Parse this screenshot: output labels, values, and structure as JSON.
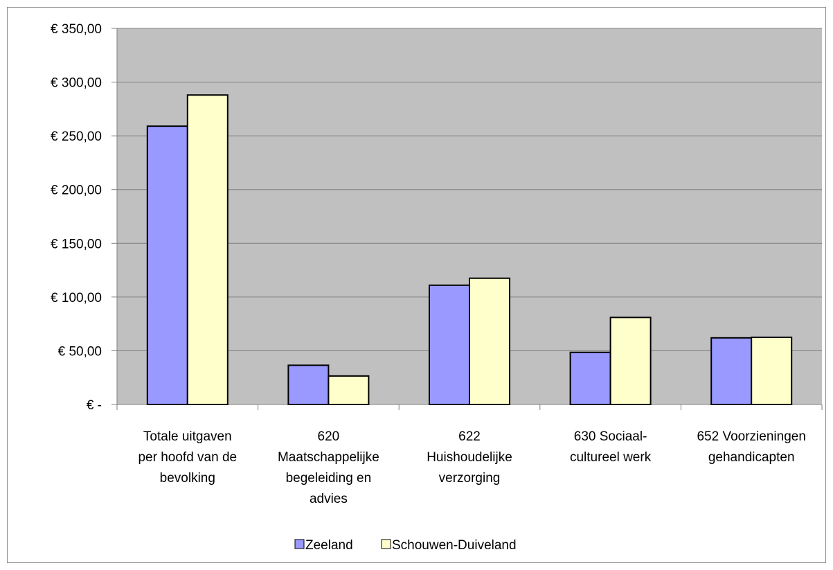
{
  "chart_data": {
    "type": "bar",
    "title": "",
    "xlabel": "",
    "ylabel": "",
    "ylim": [
      0,
      350
    ],
    "ytick_values": [
      0,
      50,
      100,
      150,
      200,
      250,
      300,
      350
    ],
    "ytick_labels": [
      "€ -",
      "€ 50,00",
      "€ 100,00",
      "€ 150,00",
      "€ 200,00",
      "€ 250,00",
      "€ 300,00",
      "€ 350,00"
    ],
    "grid": true,
    "legend_position": "bottom",
    "plot_background": "#c0c0c0",
    "categories": [
      [
        "Totale uitgaven",
        "per hoofd van de",
        "bevolking"
      ],
      [
        "620",
        "Maatschappelijke",
        "begeleiding en",
        "advies"
      ],
      [
        "622",
        "Huishoudelijke",
        "verzorging"
      ],
      [
        "630 Sociaal-",
        "cultureel werk"
      ],
      [
        "652 Voorzieningen",
        "gehandicapten"
      ]
    ],
    "series": [
      {
        "name": "Zeeland",
        "color": "#9999ff",
        "values": [
          259,
          36.5,
          111,
          48.5,
          62
        ]
      },
      {
        "name": "Schouwen-Duiveland",
        "color": "#ffffcc",
        "values": [
          288,
          26.5,
          117.5,
          81,
          62.5
        ]
      }
    ]
  }
}
